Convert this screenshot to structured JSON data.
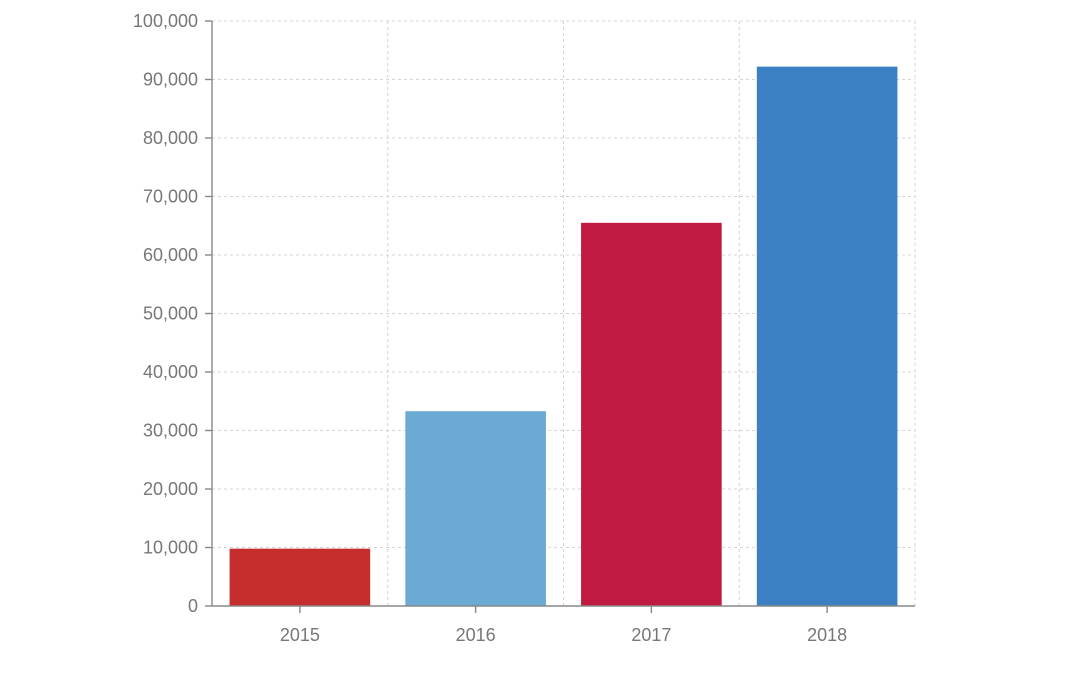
{
  "chart_data": {
    "type": "bar",
    "title": "",
    "xlabel": "",
    "ylabel": "",
    "categories": [
      "2015",
      "2016",
      "2017",
      "2018"
    ],
    "values": [
      9800,
      33300,
      65500,
      92200
    ],
    "bar_colors": [
      "#c62e2e",
      "#6aaad3",
      "#c01a42",
      "#3a80c2"
    ],
    "ylim": [
      0,
      100000
    ],
    "y_ticks": [
      0,
      10000,
      20000,
      30000,
      40000,
      50000,
      60000,
      70000,
      80000,
      90000,
      100000
    ],
    "y_tick_labels": [
      "0",
      "10,000",
      "20,000",
      "30,000",
      "40,000",
      "50,000",
      "60,000",
      "70,000",
      "80,000",
      "90,000",
      "100,000"
    ],
    "grid": true,
    "legend": "none"
  }
}
